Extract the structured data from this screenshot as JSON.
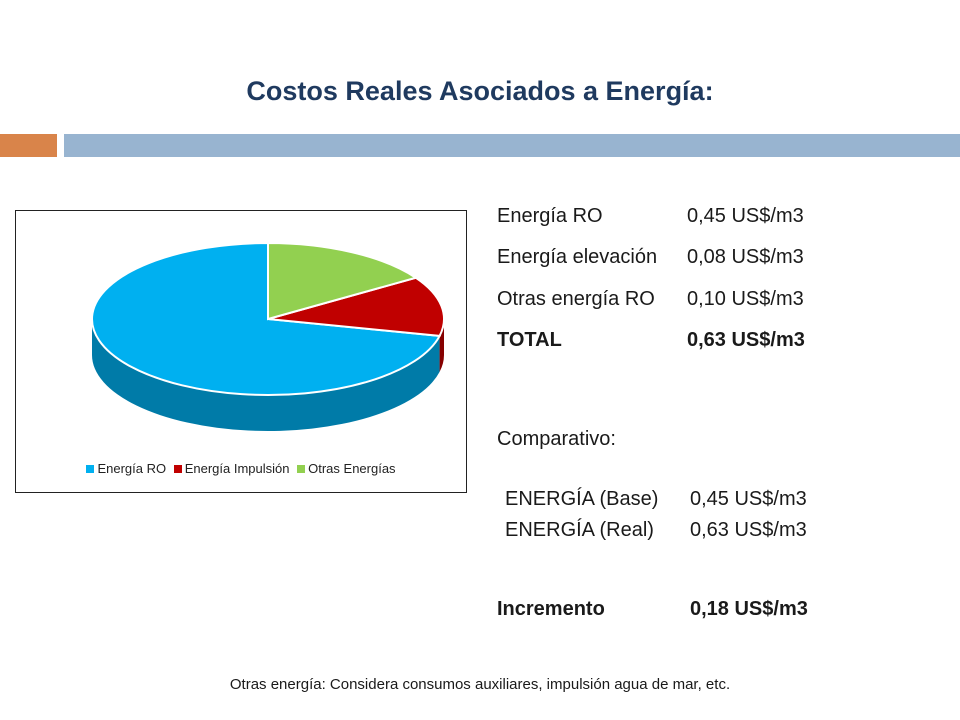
{
  "title": "Costos Reales Asociados a Energía:",
  "costs": [
    {
      "label": "Energía  RO",
      "value": "0,45 US$/m3"
    },
    {
      "label": "Energía elevación",
      "value": "0,08 US$/m3"
    },
    {
      "label": "Otras energía RO",
      "value": "0,10 US$/m3"
    }
  ],
  "total": {
    "label": "TOTAL",
    "value": "0,63 US$/m3"
  },
  "comparativo": {
    "heading": "Comparativo:",
    "rows": [
      {
        "label": "ENERGÍA (Base)",
        "value": "0,45 US$/m3"
      },
      {
        "label": "ENERGÍA (Real)",
        "value": "0,63 US$/m3"
      }
    ]
  },
  "incremento": {
    "label": "Incremento",
    "value": "0,18 US$/m3"
  },
  "footnote": "Otras energía: Considera consumos auxiliares, impulsión agua de mar, etc.",
  "chart_data": {
    "type": "pie",
    "style": "3d",
    "legend_position": "bottom",
    "series": [
      {
        "name": "Energía RO",
        "value": 0.45,
        "color": "#00b0f0"
      },
      {
        "name": "Energía Impulsión",
        "value": 0.08,
        "color": "#c00000"
      },
      {
        "name": "Otras Energías",
        "value": 0.1,
        "color": "#92d050"
      }
    ]
  }
}
